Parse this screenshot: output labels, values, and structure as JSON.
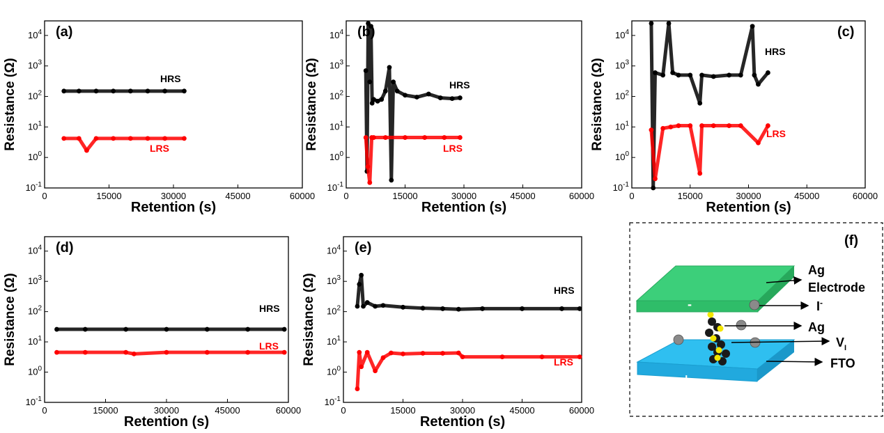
{
  "chart_data": [
    {
      "panel": "(a)",
      "type": "scatter",
      "xlabel": "Retention (s)",
      "ylabel": "Resistance (Ω)",
      "xlim": [
        0,
        60000
      ],
      "ylim": [
        0.1,
        30000
      ],
      "yscale": "log",
      "xticks": [
        "0",
        "15000",
        "30000",
        "45000",
        "60000"
      ],
      "yticks": [
        "10-1",
        "100",
        "101",
        "102",
        "103",
        "104"
      ],
      "series": [
        {
          "name": "HRS",
          "color": "#000000",
          "x": [
            4500,
            8000,
            12000,
            16000,
            20000,
            24000,
            28000,
            32500
          ],
          "y": [
            150,
            150,
            150,
            150,
            150,
            150,
            150,
            150
          ]
        },
        {
          "name": "LRS",
          "color": "#ff0000",
          "x": [
            4500,
            8000,
            9800,
            12000,
            16000,
            20000,
            24000,
            28000,
            32500
          ],
          "y": [
            4.2,
            4.2,
            1.7,
            4.2,
            4.2,
            4.2,
            4.2,
            4.2,
            4.2
          ]
        }
      ]
    },
    {
      "panel": "(b)",
      "type": "scatter",
      "xlabel": "Retention (s)",
      "ylabel": "Resistance (Ω)",
      "xlim": [
        0,
        60000
      ],
      "ylim": [
        0.1,
        30000
      ],
      "yscale": "log",
      "xticks": [
        "0",
        "15000",
        "30000",
        "45000",
        "60000"
      ],
      "yticks": [
        "10-1",
        "100",
        "101",
        "102",
        "103",
        "104"
      ],
      "series": [
        {
          "name": "HRS",
          "color": "#000000",
          "x": [
            5000,
            5300,
            5600,
            6000,
            6300,
            6600,
            7000,
            8000,
            9000,
            10000,
            11000,
            11500,
            12000,
            13000,
            15000,
            18000,
            21000,
            24000,
            27000,
            29000
          ],
          "y": [
            700,
            0.35,
            25000,
            300,
            20000,
            60,
            80,
            70,
            80,
            150,
            900,
            0.18,
            300,
            150,
            110,
            95,
            120,
            90,
            85,
            90
          ]
        },
        {
          "name": "LRS",
          "color": "#ff0000",
          "x": [
            5000,
            5500,
            6000,
            6500,
            7000,
            10000,
            15000,
            20000,
            25000,
            29000
          ],
          "y": [
            4.5,
            0.5,
            0.15,
            4.5,
            4.5,
            4.5,
            4.5,
            4.5,
            4.5,
            4.5
          ]
        }
      ]
    },
    {
      "panel": "(c)",
      "type": "scatter",
      "xlabel": "Retention (s)",
      "ylabel": "Resistance (Ω)",
      "xlim": [
        0,
        60000
      ],
      "ylim": [
        0.1,
        30000
      ],
      "yscale": "log",
      "xticks": [
        "0",
        "15000",
        "30000",
        "45000",
        "60000"
      ],
      "yticks": [
        "10-1",
        "100",
        "101",
        "102",
        "103",
        "104"
      ],
      "series": [
        {
          "name": "HRS",
          "color": "#000000",
          "x": [
            5000,
            5500,
            6000,
            8000,
            9500,
            10500,
            12000,
            15000,
            17500,
            18000,
            21000,
            25000,
            28000,
            31000,
            31500,
            32500,
            35000
          ],
          "y": [
            25000,
            0.1,
            600,
            500,
            25000,
            600,
            500,
            500,
            60,
            500,
            450,
            500,
            500,
            20000,
            500,
            250,
            600
          ]
        },
        {
          "name": "LRS",
          "color": "#ff0000",
          "x": [
            5000,
            6000,
            8000,
            10000,
            12000,
            15000,
            17500,
            18000,
            21000,
            25000,
            28000,
            32500,
            35000
          ],
          "y": [
            8,
            0.2,
            9,
            10,
            11,
            11,
            0.3,
            11,
            11,
            11,
            11,
            3,
            11
          ]
        }
      ]
    },
    {
      "panel": "(d)",
      "type": "scatter",
      "xlabel": "Retention (s)",
      "ylabel": "Resistance (Ω)",
      "xlim": [
        0,
        60000
      ],
      "ylim": [
        0.1,
        30000
      ],
      "yscale": "log",
      "xticks": [
        "0",
        "15000",
        "30000",
        "45000",
        "60000"
      ],
      "yticks": [
        "10-1",
        "100",
        "101",
        "102",
        "103",
        "104"
      ],
      "series": [
        {
          "name": "HRS",
          "color": "#000000",
          "x": [
            3000,
            10000,
            20000,
            30000,
            40000,
            50000,
            59000
          ],
          "y": [
            26,
            26,
            26,
            26,
            26,
            26,
            26
          ]
        },
        {
          "name": "LRS",
          "color": "#ff0000",
          "x": [
            3000,
            10000,
            20000,
            22000,
            30000,
            40000,
            50000,
            59000
          ],
          "y": [
            4.5,
            4.5,
            4.5,
            4.0,
            4.5,
            4.5,
            4.5,
            4.5
          ]
        }
      ]
    },
    {
      "panel": "(e)",
      "type": "scatter",
      "xlabel": "Retention (s)",
      "ylabel": "Resistance (Ω)",
      "xlim": [
        0,
        60000
      ],
      "ylim": [
        0.1,
        30000
      ],
      "yscale": "log",
      "xticks": [
        "0",
        "15000",
        "30000",
        "45000",
        "60000"
      ],
      "yticks": [
        "10-1",
        "100",
        "101",
        "102",
        "103",
        "104"
      ],
      "series": [
        {
          "name": "HRS",
          "color": "#000000",
          "x": [
            3500,
            4000,
            4500,
            5000,
            6000,
            8000,
            10000,
            15000,
            20000,
            25000,
            29000,
            35000,
            45000,
            55000,
            59500
          ],
          "y": [
            150,
            800,
            1600,
            150,
            200,
            150,
            160,
            140,
            130,
            125,
            120,
            125,
            125,
            125,
            125
          ]
        },
        {
          "name": "LRS",
          "color": "#ff0000",
          "x": [
            3500,
            4000,
            4500,
            6000,
            8000,
            10000,
            12000,
            15000,
            20000,
            25000,
            29000,
            30000,
            40000,
            50000,
            59500
          ],
          "y": [
            0.28,
            4.5,
            1.5,
            4.5,
            1.1,
            3.0,
            4.3,
            4.0,
            4.2,
            4.2,
            4.3,
            3.2,
            3.2,
            3.2,
            3.2
          ]
        }
      ]
    }
  ],
  "labels": {
    "a": "(a)",
    "b": "(b)",
    "c": "(c)",
    "d": "(d)",
    "e": "(e)",
    "f": "(f)",
    "hrs": "HRS",
    "lrs": "LRS",
    "xlabel": "Retention (s)",
    "ylabel": "Resistance (Ω)"
  },
  "schematic": {
    "ag_label": "Ag",
    "electrode_label": "Electrode",
    "iodide_label": "I",
    "iodide_sup": "-",
    "ag_ion_label": "Ag",
    "vacancy_label": "V",
    "vacancy_sub": "I",
    "fto_label": "FTO",
    "minus": "-",
    "plus": "+",
    "colors": {
      "top": "#3ccf7a",
      "bottom": "#2fbff0"
    }
  }
}
